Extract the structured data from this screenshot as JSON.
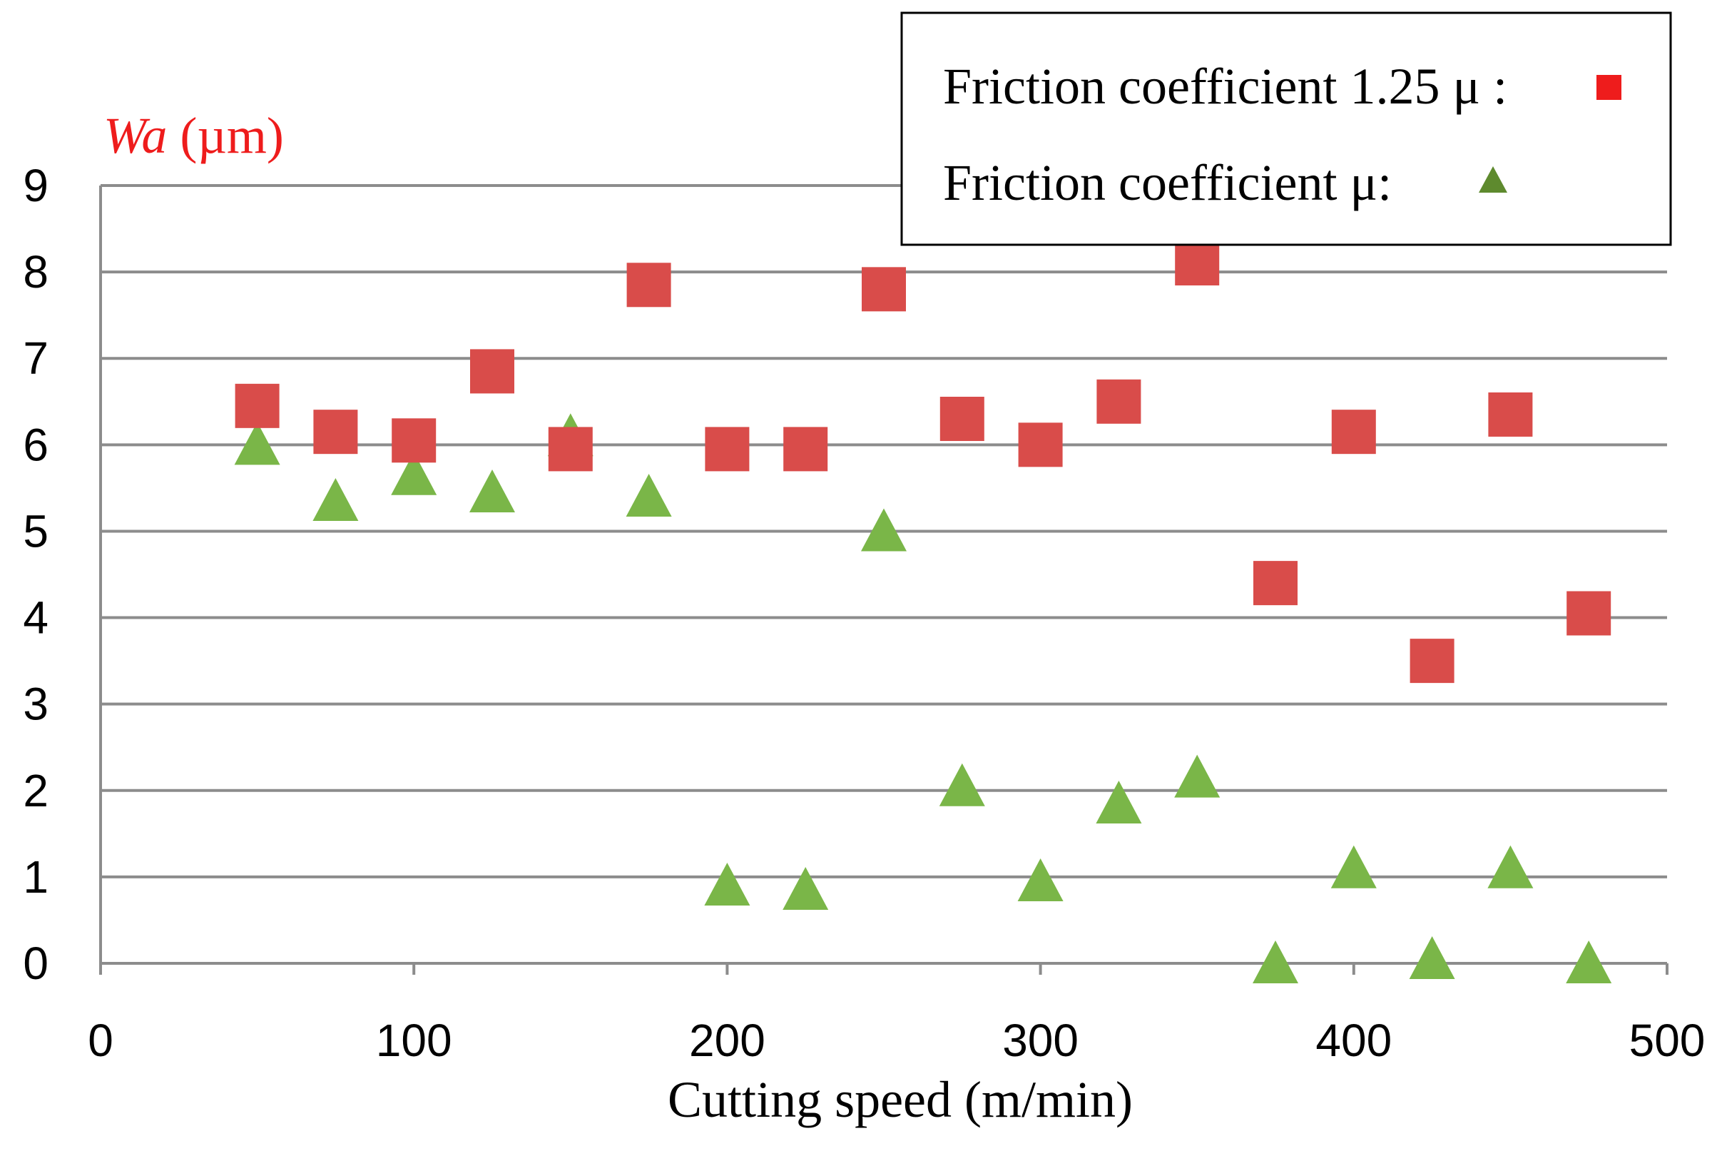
{
  "chart_data": {
    "type": "scatter",
    "title": "",
    "xlabel": "Cutting speed (m/min)",
    "ylabel_main": "Wa",
    "ylabel_unit": " (µm)",
    "xlim": [
      0,
      500
    ],
    "ylim": [
      0,
      9
    ],
    "x_ticks": [
      0,
      100,
      200,
      300,
      400,
      500
    ],
    "y_ticks": [
      0,
      1,
      2,
      3,
      4,
      5,
      6,
      7,
      8,
      9
    ],
    "grid": true,
    "legend_position": "top-right",
    "series": [
      {
        "name": "Friction coefficient 1.25 μ :",
        "marker": "square",
        "color": "#d94c4a",
        "legend_color": "#ee1c1c",
        "x": [
          50,
          75,
          100,
          125,
          150,
          175,
          200,
          225,
          250,
          275,
          300,
          325,
          350,
          375,
          400,
          425,
          450,
          475
        ],
        "y": [
          6.45,
          6.15,
          6.05,
          6.85,
          5.95,
          7.85,
          5.95,
          5.95,
          7.8,
          6.3,
          6.0,
          6.5,
          8.1,
          4.4,
          6.15,
          3.5,
          6.35,
          4.05
        ]
      },
      {
        "name": "Friction coefficient μ:",
        "marker": "triangle",
        "color": "#7ab648",
        "legend_color": "#5e8a2e",
        "x": [
          50,
          75,
          100,
          125,
          150,
          175,
          200,
          225,
          250,
          275,
          300,
          325,
          350,
          375,
          400,
          425,
          450,
          475
        ],
        "y": [
          6.0,
          5.35,
          5.65,
          5.45,
          6.1,
          5.4,
          0.9,
          0.85,
          5.0,
          2.05,
          0.95,
          1.85,
          2.15,
          0.0,
          1.1,
          0.05,
          1.1,
          0.0
        ]
      }
    ]
  },
  "colors": {
    "ylabel": "#ee1c1c",
    "grid": "#8c8c8c"
  }
}
